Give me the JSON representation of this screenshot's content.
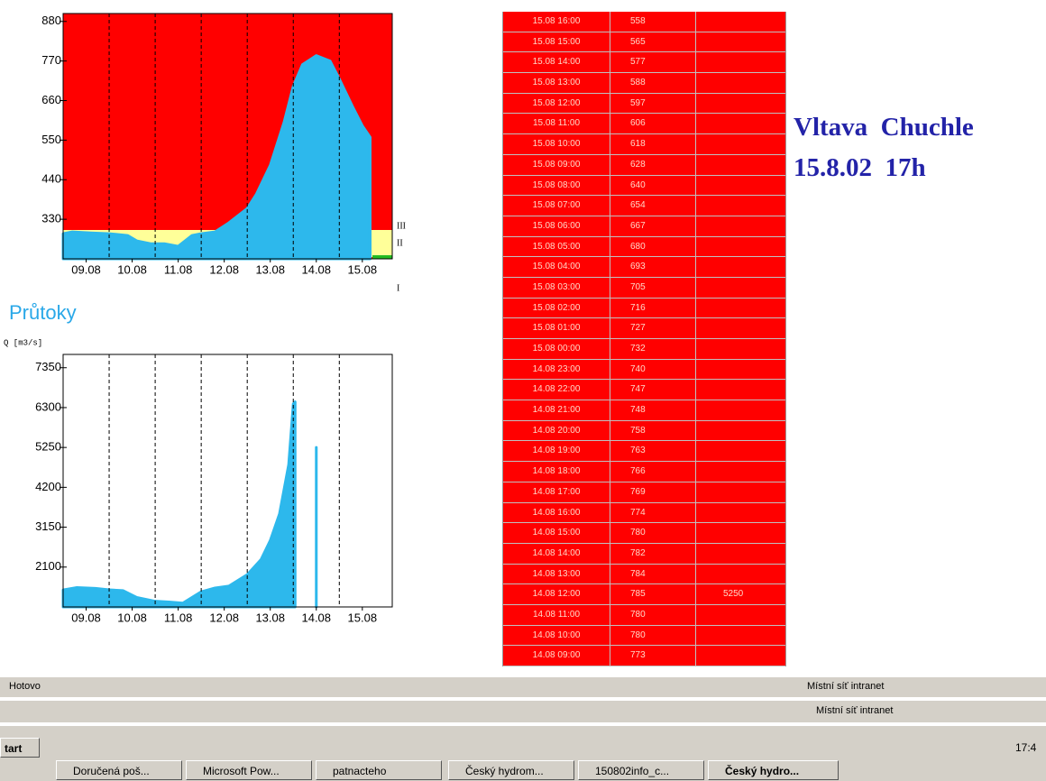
{
  "chart_data": [
    {
      "type": "area",
      "color": "#2db8ec",
      "background": "#ff0000",
      "threshold_labels": [
        "III",
        "II",
        "I"
      ],
      "xlim": [
        9,
        16.15
      ],
      "ylim": [
        220,
        902
      ],
      "xticks": [
        {
          "value": 9.5,
          "label": "09.08"
        },
        {
          "value": 10.5,
          "label": "10.08"
        },
        {
          "value": 11.5,
          "label": "11.08"
        },
        {
          "value": 12.5,
          "label": "12.08"
        },
        {
          "value": 13.5,
          "label": "13.08"
        },
        {
          "value": 14.5,
          "label": "14.08"
        },
        {
          "value": 15.5,
          "label": "15.08"
        }
      ],
      "yticks": [
        330,
        440,
        550,
        660,
        770,
        880
      ],
      "vlines": [
        10,
        11,
        12,
        13,
        14,
        15
      ],
      "series": [
        {
          "x": [
            9,
            9.2,
            9.6,
            10,
            10.4,
            10.6,
            10.9,
            11.2,
            11.5,
            11.8,
            12,
            12.3,
            12.6,
            13,
            13.2,
            13.5,
            13.8,
            14.0,
            14.2,
            14.5,
            14.8,
            15.0,
            15.3,
            15.5,
            15.67
          ],
          "values": [
            290,
            295,
            292,
            290,
            285,
            270,
            262,
            262,
            255,
            285,
            290,
            295,
            320,
            360,
            400,
            480,
            600,
            700,
            760,
            785,
            770,
            720,
            640,
            590,
            558
          ]
        }
      ]
    },
    {
      "type": "area",
      "title": "Průtoky",
      "y_label": "Q [m3/s]",
      "color": "#2db8ec",
      "background": "#ffffff",
      "xlim": [
        9,
        16.15
      ],
      "ylim": [
        1050,
        7700
      ],
      "xticks": [
        {
          "value": 9.5,
          "label": "09.08"
        },
        {
          "value": 10.5,
          "label": "10.08"
        },
        {
          "value": 11.5,
          "label": "11.08"
        },
        {
          "value": 12.5,
          "label": "12.08"
        },
        {
          "value": 13.5,
          "label": "13.08"
        },
        {
          "value": 14.5,
          "label": "14.08"
        },
        {
          "value": 15.5,
          "label": "15.08"
        }
      ],
      "yticks": [
        2100,
        3150,
        4200,
        5250,
        6300,
        7350
      ],
      "vlines": [
        10,
        11,
        12,
        13,
        14,
        15
      ],
      "series": [
        {
          "x": [
            9,
            9.3,
            9.7,
            10,
            10.3,
            10.6,
            11,
            11.3,
            11.6,
            12,
            12.3,
            12.6,
            13,
            13.3,
            13.5,
            13.7,
            13.9,
            14.0,
            14.04,
            14.3,
            14.5
          ],
          "values": [
            1500,
            1560,
            1540,
            1500,
            1480,
            1300,
            1200,
            1180,
            1150,
            1450,
            1550,
            1600,
            1900,
            2300,
            2800,
            3500,
            4800,
            6400,
            6450,
            null,
            5250
          ]
        }
      ]
    }
  ],
  "table": {
    "rows": [
      [
        "15.08 16:00",
        558,
        null
      ],
      [
        "15.08 15:00",
        565,
        null
      ],
      [
        "15.08 14:00",
        577,
        null
      ],
      [
        "15.08 13:00",
        588,
        null
      ],
      [
        "15.08 12:00",
        597,
        null
      ],
      [
        "15.08 11:00",
        606,
        null
      ],
      [
        "15.08 10:00",
        618,
        null
      ],
      [
        "15.08 09:00",
        628,
        null
      ],
      [
        "15.08 08:00",
        640,
        null
      ],
      [
        "15.08 07:00",
        654,
        null
      ],
      [
        "15.08 06:00",
        667,
        null
      ],
      [
        "15.08 05:00",
        680,
        null
      ],
      [
        "15.08 04:00",
        693,
        null
      ],
      [
        "15.08 03:00",
        705,
        null
      ],
      [
        "15.08 02:00",
        716,
        null
      ],
      [
        "15.08 01:00",
        727,
        null
      ],
      [
        "15.08 00:00",
        732,
        null
      ],
      [
        "14.08 23:00",
        740,
        null
      ],
      [
        "14.08 22:00",
        747,
        null
      ],
      [
        "14.08 21:00",
        748,
        null
      ],
      [
        "14.08 20:00",
        758,
        null
      ],
      [
        "14.08 19:00",
        763,
        null
      ],
      [
        "14.08 18:00",
        766,
        null
      ],
      [
        "14.08 17:00",
        769,
        null
      ],
      [
        "14.08 16:00",
        774,
        null
      ],
      [
        "14.08 15:00",
        780,
        null
      ],
      [
        "14.08 14:00",
        782,
        null
      ],
      [
        "14.08 13:00",
        784,
        null
      ],
      [
        "14.08 12:00",
        785,
        5250
      ],
      [
        "14.08 11:00",
        780,
        null
      ],
      [
        "14.08 10:00",
        780,
        null
      ],
      [
        "14.08 09:00",
        773,
        null
      ]
    ]
  },
  "header": {
    "station": "Vltava  Chuchle",
    "time": "15.8.02  17h"
  },
  "statusbar": {
    "text": "Hotovo",
    "zone": "Místní síť intranet",
    "zone2": "Místní síť intranet"
  },
  "taskbar": {
    "start": "tart",
    "clock": "17:4",
    "tasks": [
      "Doručená poš...",
      "Microsoft Pow...",
      "patnacteho",
      "Český hydrom...",
      "150802info_c...",
      "Český hydro..."
    ]
  }
}
